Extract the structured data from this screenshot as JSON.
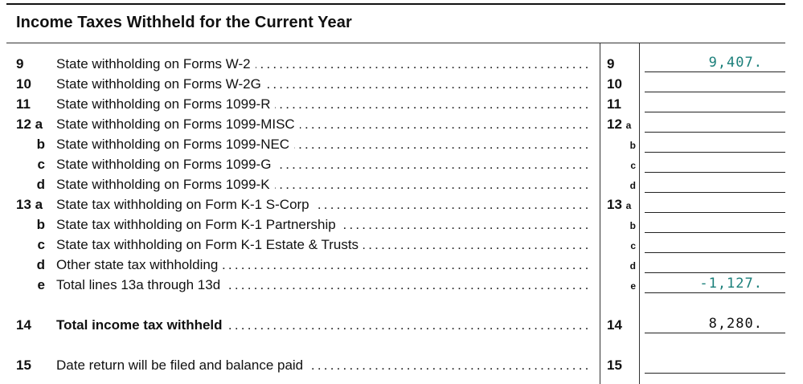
{
  "section": {
    "title": "Income Taxes Withheld for the Current Year"
  },
  "lines": [
    {
      "num": "9",
      "desc": "State withholding on Forms W-2",
      "box": "9",
      "value": "9,407.",
      "style": "teal"
    },
    {
      "num": "10",
      "desc": "State withholding on Forms W-2G",
      "box": "10",
      "value": ""
    },
    {
      "num": "11",
      "desc": "State withholding on Forms 1099-R",
      "box": "11",
      "value": ""
    },
    {
      "num": "12 a",
      "desc": "State withholding on Forms 1099-MISC",
      "box": "12",
      "box_sub": "a",
      "value": ""
    },
    {
      "num": "b",
      "desc": "State withholding on Forms 1099-NEC",
      "box_letter": "b",
      "value": ""
    },
    {
      "num": "c",
      "desc": "State withholding on Forms 1099-G",
      "box_letter": "c",
      "value": ""
    },
    {
      "num": "d",
      "desc": "State withholding on Forms 1099-K",
      "box_letter": "d",
      "value": ""
    },
    {
      "num": "13 a",
      "desc": "State tax withholding on Form K-1 S-Corp",
      "box": "13",
      "box_sub": "a",
      "value": ""
    },
    {
      "num": "b",
      "desc": "State tax withholding on Form K-1 Partnership",
      "box_letter": "b",
      "value": ""
    },
    {
      "num": "c",
      "desc": "State tax withholding on Form K-1 Estate & Trusts",
      "box_letter": "c",
      "value": ""
    },
    {
      "num": "d",
      "desc": "Other state tax withholding",
      "box_letter": "d",
      "value": ""
    },
    {
      "num": "e",
      "desc": "Total lines 13a through 13d",
      "box_letter": "e",
      "value": "-1,127.",
      "style": "teal"
    },
    {
      "num": "14",
      "desc": "Total income tax withheld",
      "box": "14",
      "value": "8,280.",
      "style": "black",
      "bold": true
    },
    {
      "num": "15",
      "desc": "Date return will be filed and balance paid",
      "box": "15",
      "value": ""
    }
  ]
}
